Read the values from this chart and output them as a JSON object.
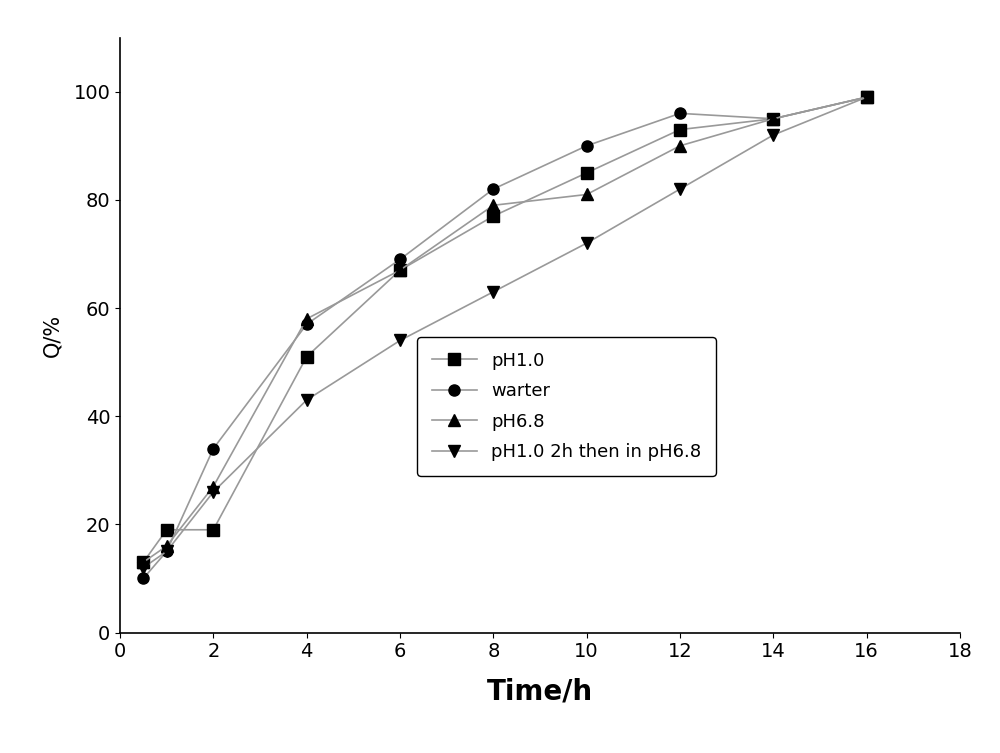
{
  "series": [
    {
      "label": "pH1.0",
      "marker": "s",
      "x": [
        0.5,
        1,
        2,
        4,
        6,
        8,
        10,
        12,
        14,
        16
      ],
      "y": [
        13,
        19,
        19,
        51,
        67,
        77,
        85,
        93,
        95,
        99
      ]
    },
    {
      "label": "warter",
      "marker": "o",
      "x": [
        0.5,
        1,
        2,
        4,
        6,
        8,
        10,
        12,
        14,
        16
      ],
      "y": [
        10,
        15,
        34,
        57,
        69,
        82,
        90,
        96,
        95,
        99
      ]
    },
    {
      "label": "pH6.8",
      "marker": "^",
      "x": [
        0.5,
        1,
        2,
        4,
        6,
        8,
        10,
        12,
        14,
        16
      ],
      "y": [
        13,
        16,
        27,
        58,
        67,
        79,
        81,
        90,
        95,
        99
      ]
    },
    {
      "label": "pH1.0 2h then in pH6.8",
      "marker": "v",
      "x": [
        0.5,
        1,
        2,
        4,
        6,
        8,
        10,
        12,
        14,
        16
      ],
      "y": [
        12,
        15,
        26,
        43,
        54,
        63,
        72,
        82,
        92,
        99
      ]
    }
  ],
  "xlabel": "Time/h",
  "ylabel": "Q/%",
  "xlim": [
    0,
    18
  ],
  "ylim": [
    0,
    110
  ],
  "xticks": [
    0,
    2,
    4,
    6,
    8,
    10,
    12,
    14,
    16,
    18
  ],
  "yticks": [
    0,
    20,
    40,
    60,
    80,
    100
  ],
  "marker_color": "#000000",
  "line_color": "#999999",
  "marker_size": 8,
  "line_width": 1.2,
  "xlabel_fontsize": 20,
  "ylabel_fontsize": 15,
  "tick_fontsize": 14,
  "legend_fontsize": 13,
  "xlabel_fontweight": "bold"
}
